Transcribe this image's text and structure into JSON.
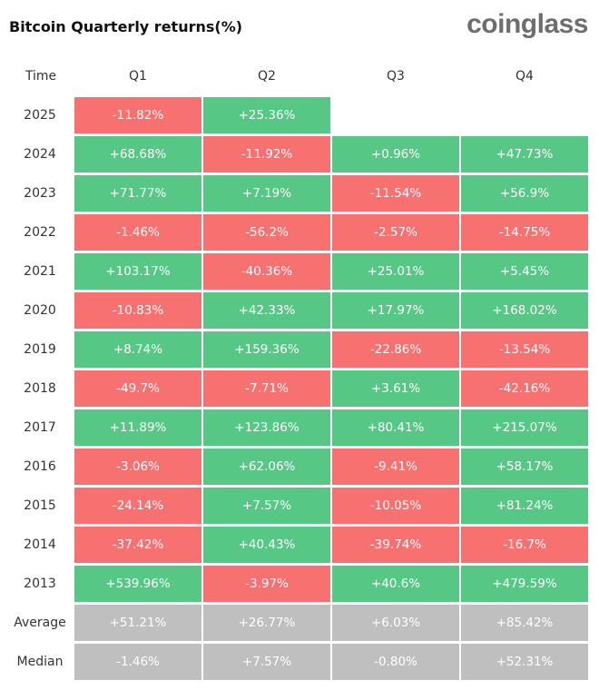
{
  "header": {
    "title": "Bitcoin Quarterly returns(%)",
    "brand": "coinglass"
  },
  "colors": {
    "positive": "#56c784",
    "negative": "#f87171",
    "summary": "#bfbfbf",
    "text_on_cell": "#ffffff",
    "brand_gray": "#6e6e6e"
  },
  "chart_data": {
    "type": "table",
    "corner_label": "Time",
    "columns": [
      "Q1",
      "Q2",
      "Q3",
      "Q4"
    ],
    "rows": [
      {
        "label": "2025",
        "values": [
          "-11.82%",
          "+25.36%",
          "",
          ""
        ]
      },
      {
        "label": "2024",
        "values": [
          "+68.68%",
          "-11.92%",
          "+0.96%",
          "+47.73%"
        ]
      },
      {
        "label": "2023",
        "values": [
          "+71.77%",
          "+7.19%",
          "-11.54%",
          "+56.9%"
        ]
      },
      {
        "label": "2022",
        "values": [
          "-1.46%",
          "-56.2%",
          "-2.57%",
          "-14.75%"
        ]
      },
      {
        "label": "2021",
        "values": [
          "+103.17%",
          "-40.36%",
          "+25.01%",
          "+5.45%"
        ]
      },
      {
        "label": "2020",
        "values": [
          "-10.83%",
          "+42.33%",
          "+17.97%",
          "+168.02%"
        ]
      },
      {
        "label": "2019",
        "values": [
          "+8.74%",
          "+159.36%",
          "-22.86%",
          "-13.54%"
        ]
      },
      {
        "label": "2018",
        "values": [
          "-49.7%",
          "-7.71%",
          "+3.61%",
          "-42.16%"
        ]
      },
      {
        "label": "2017",
        "values": [
          "+11.89%",
          "+123.86%",
          "+80.41%",
          "+215.07%"
        ]
      },
      {
        "label": "2016",
        "values": [
          "-3.06%",
          "+62.06%",
          "-9.41%",
          "+58.17%"
        ]
      },
      {
        "label": "2015",
        "values": [
          "-24.14%",
          "+7.57%",
          "-10.05%",
          "+81.24%"
        ]
      },
      {
        "label": "2014",
        "values": [
          "-37.42%",
          "+40.43%",
          "-39.74%",
          "-16.7%"
        ]
      },
      {
        "label": "2013",
        "values": [
          "+539.96%",
          "-3.97%",
          "+40.6%",
          "+479.59%"
        ]
      }
    ],
    "summary_rows": [
      {
        "label": "Average",
        "values": [
          "+51.21%",
          "+26.77%",
          "+6.03%",
          "+85.42%"
        ]
      },
      {
        "label": "Median",
        "values": [
          "-1.46%",
          "+7.57%",
          "-0.80%",
          "+52.31%"
        ]
      }
    ]
  }
}
